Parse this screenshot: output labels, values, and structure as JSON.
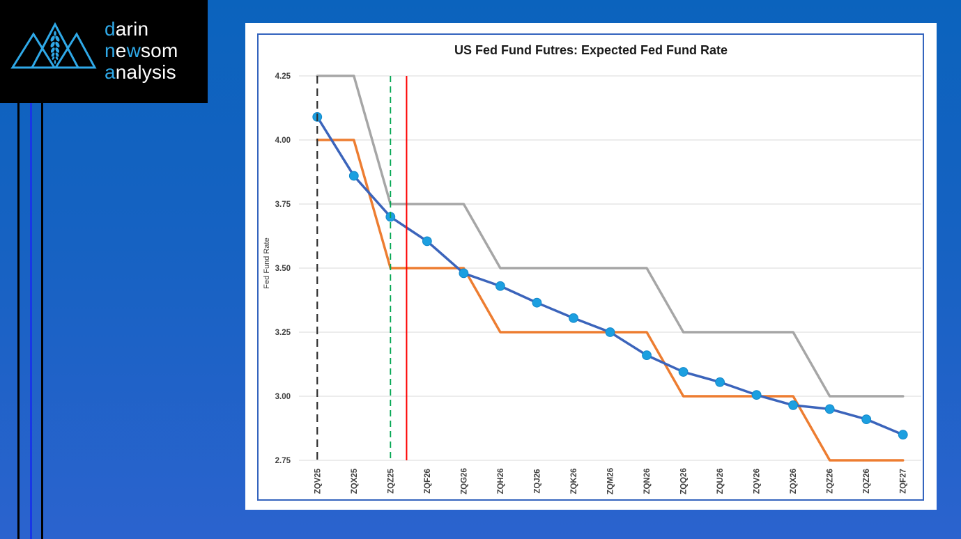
{
  "background": {
    "gradient_top": "#0b63bd",
    "gradient_bottom": "#2b63ce",
    "stripe_black": "#000000",
    "stripe_blue": "#1836e6"
  },
  "logo": {
    "brand_lines": [
      {
        "segments": [
          {
            "text": "d",
            "accent": true
          },
          {
            "text": "arin",
            "accent": false
          }
        ]
      },
      {
        "segments": [
          {
            "text": "n",
            "accent": true
          },
          {
            "text": "e",
            "accent": false
          },
          {
            "text": "w",
            "accent": true
          },
          {
            "text": "som",
            "accent": false
          }
        ]
      },
      {
        "segments": [
          {
            "text": "a",
            "accent": true
          },
          {
            "text": "nalysis",
            "accent": false
          }
        ]
      }
    ],
    "accent_color": "#2fa9e8",
    "text_color": "#ffffff",
    "icon": "three-mountains-with-wheat"
  },
  "chart_data": {
    "type": "line",
    "title": "US Fed Fund Futres: Expected Fed Fund Rate",
    "xlabel": "",
    "ylabel": "Fed Fund Rate",
    "ylim": [
      2.75,
      4.25
    ],
    "y_ticks": [
      4.25,
      4.0,
      3.75,
      3.5,
      3.25,
      3.0,
      2.75
    ],
    "grid": true,
    "legend": "none",
    "categories": [
      "ZQV25",
      "ZQX25",
      "ZQZ25",
      "ZQF26",
      "ZQG26",
      "ZQH26",
      "ZQJ26",
      "ZQK26",
      "ZQM26",
      "ZQN26",
      "ZQQ26",
      "ZQU26",
      "ZQV26",
      "ZQX26",
      "ZQZ26",
      "ZQZ26",
      "ZQF27"
    ],
    "series": [
      {
        "name": "upper-step-path",
        "color": "#a6a6a6",
        "width": 3.5,
        "markers": false,
        "values": [
          4.25,
          4.25,
          3.75,
          3.75,
          3.75,
          3.5,
          3.5,
          3.5,
          3.5,
          3.5,
          3.25,
          3.25,
          3.25,
          3.25,
          3.0,
          3.0,
          3.0
        ]
      },
      {
        "name": "lower-step-path",
        "color": "#ed7d31",
        "width": 3.5,
        "markers": false,
        "values": [
          4.0,
          4.0,
          3.5,
          3.5,
          3.5,
          3.25,
          3.25,
          3.25,
          3.25,
          3.25,
          3.0,
          3.0,
          3.0,
          3.0,
          2.75,
          2.75,
          2.75
        ]
      },
      {
        "name": "expected-fed-fund-rate",
        "color": "#3b64bb",
        "width": 3.5,
        "markers": true,
        "marker_color": "#1c9fe0",
        "marker_edge": "#1287c9",
        "marker_radius": 6.4,
        "values": [
          4.09,
          3.86,
          3.7,
          3.605,
          3.48,
          3.43,
          3.365,
          3.305,
          3.25,
          3.16,
          3.095,
          3.055,
          3.005,
          2.965,
          2.95,
          2.91,
          2.85
        ]
      }
    ],
    "ref_lines": [
      {
        "name": "black-dashed-marker-line",
        "x_index": 0,
        "color": "#2f2f2f",
        "style": "dashed",
        "width": 2.2,
        "dash": "11 7"
      },
      {
        "name": "green-dashed-marker-line",
        "x_index": 2,
        "color": "#00a550",
        "style": "dashed",
        "width": 1.8,
        "dash": "9 6"
      },
      {
        "name": "red-solid-marker-line",
        "x_index": 2.44,
        "color": "#fe0000",
        "style": "solid",
        "width": 2,
        "dash": ""
      }
    ],
    "gridline_color": "#d9d9d9"
  }
}
